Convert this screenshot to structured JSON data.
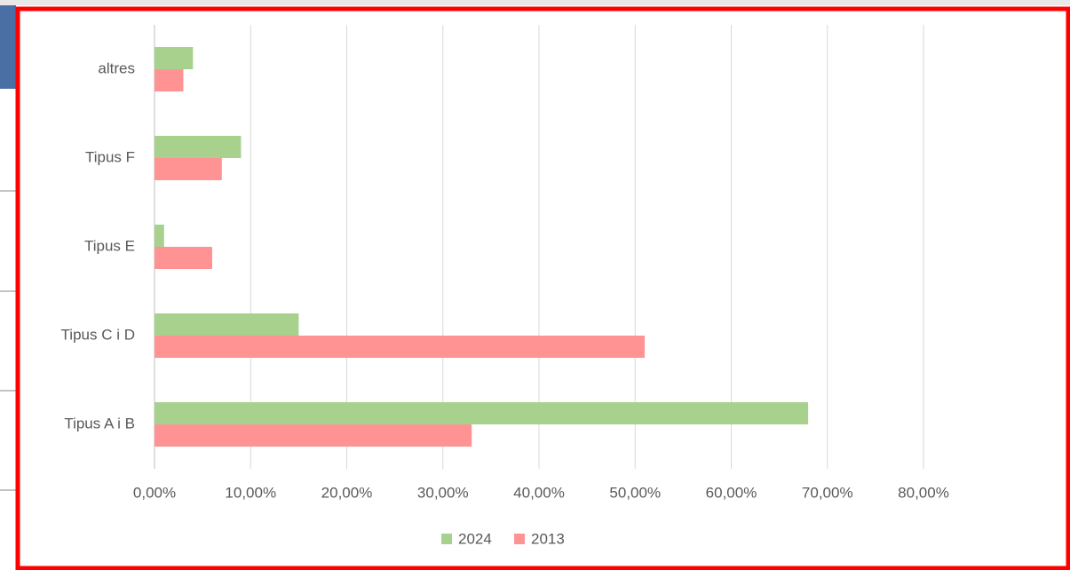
{
  "chart_data": {
    "type": "hbar",
    "categories": [
      "altres",
      "Tipus F",
      "Tipus E",
      "Tipus C i D",
      "Tipus A i B"
    ],
    "series": [
      {
        "name": "2024",
        "color": "#a9d18e",
        "values": [
          4,
          9,
          1,
          15,
          68
        ]
      },
      {
        "name": "2013",
        "color": "#ff9393",
        "values": [
          3,
          7,
          6,
          51,
          33
        ]
      }
    ],
    "xlim": [
      0,
      80
    ],
    "xticks": [
      {
        "value": 0,
        "label": "0,00%"
      },
      {
        "value": 10,
        "label": "10,00%"
      },
      {
        "value": 20,
        "label": "20,00%"
      },
      {
        "value": 30,
        "label": "30,00%"
      },
      {
        "value": 40,
        "label": "40,00%"
      },
      {
        "value": 50,
        "label": "50,00%"
      },
      {
        "value": 60,
        "label": "60,00%"
      },
      {
        "value": 70,
        "label": "70,00%"
      },
      {
        "value": 80,
        "label": "80,00%"
      }
    ],
    "grid": true,
    "legend": "bottom"
  }
}
